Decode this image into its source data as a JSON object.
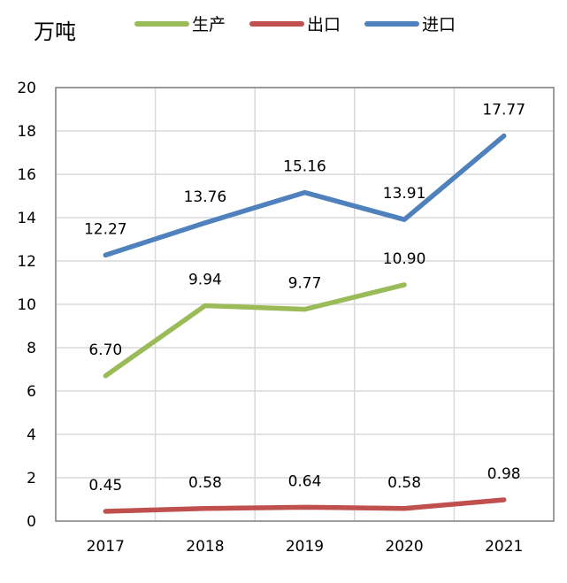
{
  "chart_data": {
    "type": "line",
    "title": "",
    "ylabel": "万吨",
    "xlabel": "",
    "categories": [
      "2017",
      "2018",
      "2019",
      "2020",
      "2021"
    ],
    "ylim": [
      0,
      20
    ],
    "yticks": [
      "0",
      "2",
      "4",
      "6",
      "8",
      "10",
      "12",
      "14",
      "16",
      "18",
      "20"
    ],
    "grid": true,
    "legend_position": "top",
    "series": [
      {
        "name": "生产",
        "color": "#9bbb59",
        "values": [
          6.7,
          9.94,
          9.77,
          10.9,
          null
        ],
        "labels": [
          "6.70",
          "9.94",
          "9.77",
          "10.90",
          null
        ]
      },
      {
        "name": "出口",
        "color": "#c0504d",
        "values": [
          0.45,
          0.58,
          0.64,
          0.58,
          0.98
        ],
        "labels": [
          "0.45",
          "0.58",
          "0.64",
          "0.58",
          "0.98"
        ]
      },
      {
        "name": "进口",
        "color": "#4f81bd",
        "values": [
          12.27,
          13.76,
          15.16,
          13.91,
          17.77
        ],
        "labels": [
          "12.27",
          "13.76",
          "15.16",
          "13.91",
          "17.77"
        ]
      }
    ]
  }
}
